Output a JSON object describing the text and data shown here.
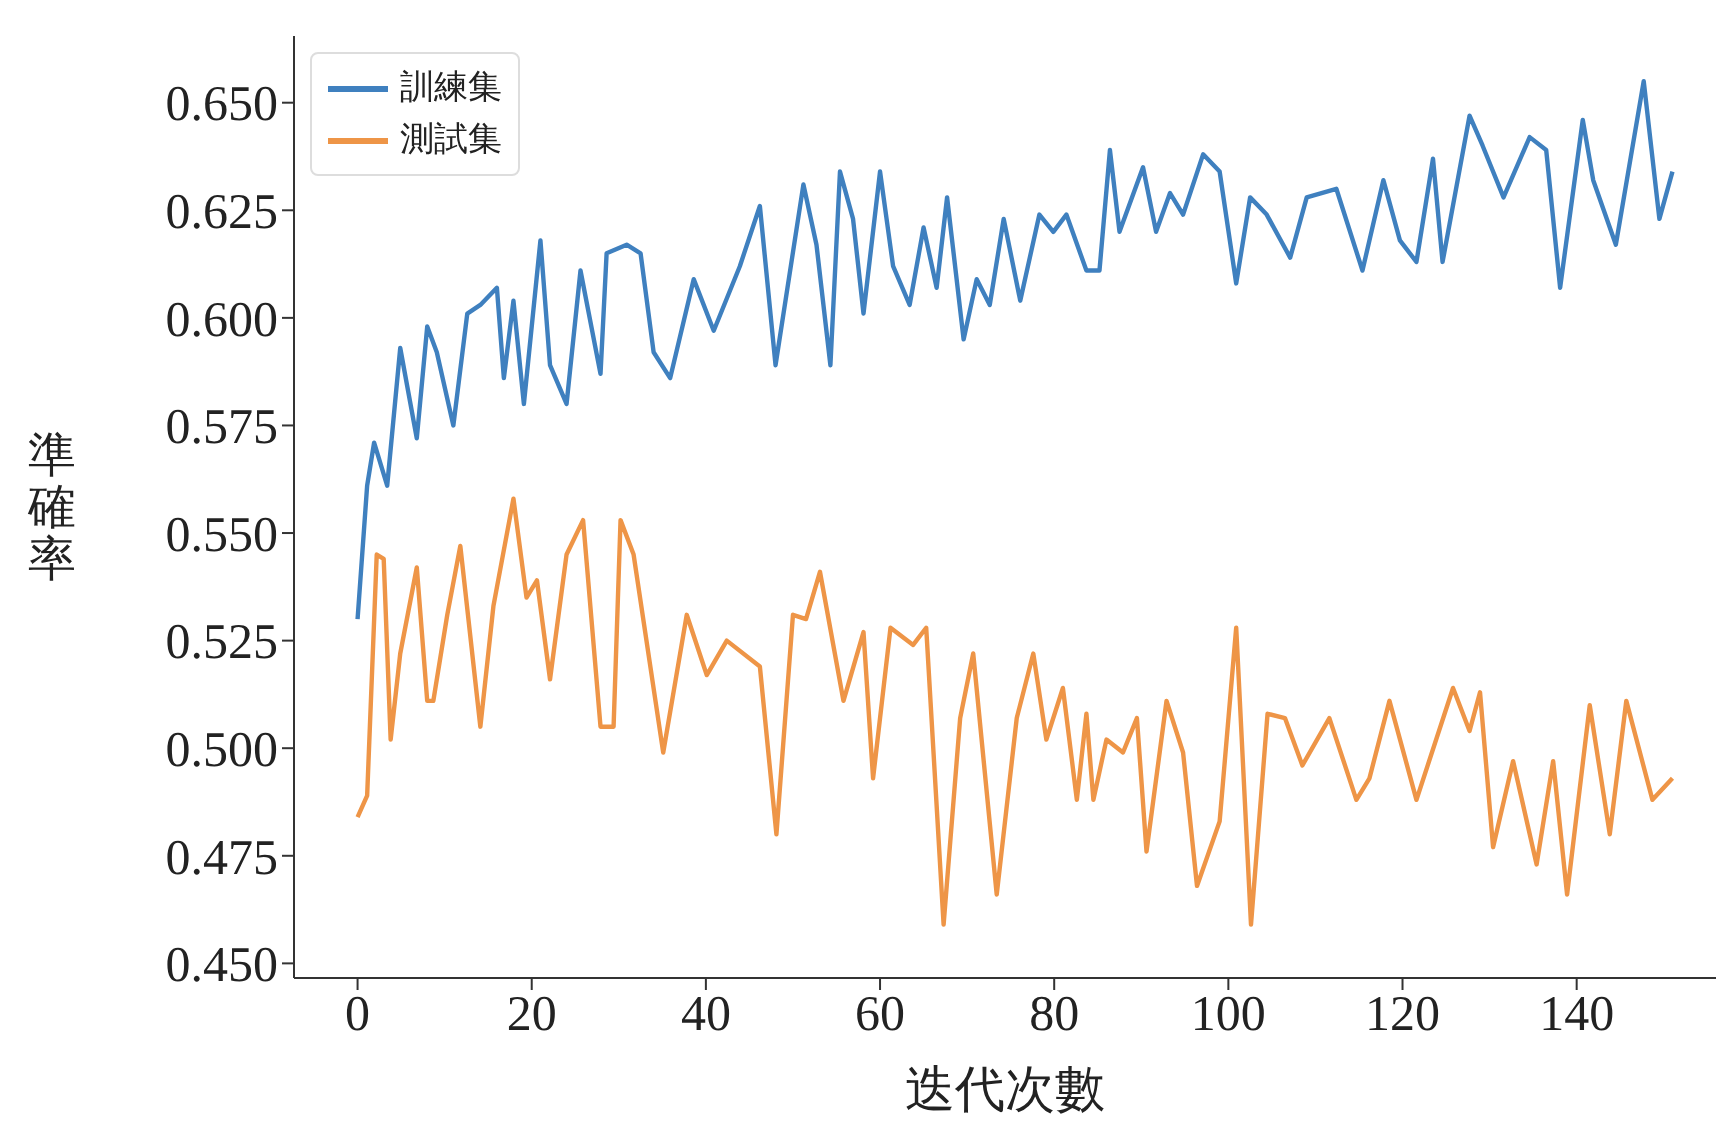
{
  "chart_data": {
    "type": "line",
    "xlabel": "迭代次數",
    "ylabel": "準確率",
    "xlim": [
      -7.3,
      156
    ],
    "xticks": [
      0,
      20,
      40,
      60,
      80,
      100,
      120,
      140
    ],
    "ylim": [
      0.4466,
      0.6655
    ],
    "yticks": [
      {
        "value": 0.45,
        "label": "0.450"
      },
      {
        "value": 0.475,
        "label": "0.475"
      },
      {
        "value": 0.5,
        "label": "0.500"
      },
      {
        "value": 0.525,
        "label": "0.525"
      },
      {
        "value": 0.55,
        "label": "0.550"
      },
      {
        "value": 0.575,
        "label": "0.575"
      },
      {
        "value": 0.6,
        "label": "0.600"
      },
      {
        "value": 0.625,
        "label": "0.625"
      },
      {
        "value": 0.65,
        "label": "0.650"
      }
    ],
    "grid": false,
    "legend": "top left",
    "line_style": "solid",
    "marker": "none",
    "series": [
      {
        "name": "訓練集",
        "color": "#3f80bf",
        "x": [
          0,
          1.1,
          1.9,
          3.4,
          4.9,
          6.8,
          8,
          9.1,
          11,
          12.6,
          14.1,
          16,
          16.8,
          17.9,
          19.1,
          21,
          22.1,
          24,
          25.6,
          27.9,
          28.6,
          30.9,
          32.5,
          34,
          35.9,
          38.6,
          40.9,
          43.9,
          46.2,
          48,
          51.2,
          52.7,
          54.3,
          55.4,
          56.9,
          58.1,
          60,
          61.5,
          63.4,
          65,
          66.5,
          67.7,
          69.6,
          71.1,
          72.6,
          74.2,
          76.1,
          78.3,
          79.9,
          81.4,
          83.7,
          85.2,
          86.4,
          87.5,
          90.2,
          91.7,
          93.3,
          94.8,
          97.1,
          99,
          100.9,
          102.5,
          104.4,
          107.1,
          109,
          112.4,
          115.4,
          117.8,
          119.7,
          121.6,
          123.5,
          124.6,
          127.7,
          129.2,
          131.6,
          134.6,
          136.5,
          138.1,
          140.7,
          141.9,
          144.5,
          147.7,
          149.5,
          151
        ],
        "values": [
          0.53,
          0.561,
          0.571,
          0.561,
          0.593,
          0.572,
          0.598,
          0.592,
          0.575,
          0.601,
          0.603,
          0.607,
          0.586,
          0.604,
          0.58,
          0.618,
          0.589,
          0.58,
          0.611,
          0.587,
          0.615,
          0.617,
          0.615,
          0.592,
          0.586,
          0.609,
          0.597,
          0.612,
          0.626,
          0.589,
          0.631,
          0.617,
          0.589,
          0.634,
          0.623,
          0.601,
          0.634,
          0.612,
          0.603,
          0.621,
          0.607,
          0.628,
          0.595,
          0.609,
          0.603,
          0.623,
          0.604,
          0.624,
          0.62,
          0.624,
          0.611,
          0.611,
          0.639,
          0.62,
          0.635,
          0.62,
          0.629,
          0.624,
          0.638,
          0.634,
          0.608,
          0.628,
          0.624,
          0.614,
          0.628,
          0.63,
          0.611,
          0.632,
          0.618,
          0.613,
          0.637,
          0.613,
          0.647,
          0.64,
          0.628,
          0.642,
          0.639,
          0.607,
          0.646,
          0.632,
          0.617,
          0.655,
          0.623,
          0.634
        ]
      },
      {
        "name": "測試集",
        "color": "#ee9547",
        "x": [
          0,
          1.1,
          2.2,
          3,
          3.8,
          4.9,
          6.8,
          8,
          8.7,
          10.3,
          11.8,
          14.1,
          15.6,
          17.9,
          19.4,
          20.6,
          22.1,
          24,
          25.9,
          27.9,
          29.4,
          30.2,
          31.7,
          35.1,
          37.8,
          40.1,
          42.4,
          46.2,
          48.1,
          50,
          51.5,
          53.1,
          55.8,
          58.1,
          59.2,
          61.2,
          63.8,
          65.3,
          67.3,
          69.2,
          70.7,
          73.4,
          75.7,
          77.6,
          79.1,
          81,
          82.6,
          83.7,
          84.5,
          86,
          87.9,
          89.5,
          90.6,
          92.9,
          94.8,
          96.4,
          99,
          100.9,
          102.6,
          104.5,
          106.5,
          108.5,
          111.6,
          114.7,
          116.2,
          118.5,
          121.6,
          125.8,
          127.7,
          128.9,
          130.4,
          132.7,
          135.4,
          137.3,
          138.9,
          141.5,
          143.8,
          145.7,
          148.7,
          151
        ],
        "values": [
          0.484,
          0.489,
          0.545,
          0.544,
          0.502,
          0.522,
          0.542,
          0.511,
          0.511,
          0.531,
          0.547,
          0.505,
          0.533,
          0.558,
          0.535,
          0.539,
          0.516,
          0.545,
          0.553,
          0.505,
          0.505,
          0.553,
          0.545,
          0.499,
          0.531,
          0.517,
          0.525,
          0.519,
          0.48,
          0.531,
          0.53,
          0.541,
          0.511,
          0.527,
          0.493,
          0.528,
          0.524,
          0.528,
          0.459,
          0.507,
          0.522,
          0.466,
          0.507,
          0.522,
          0.502,
          0.514,
          0.488,
          0.508,
          0.488,
          0.502,
          0.499,
          0.507,
          0.476,
          0.511,
          0.499,
          0.468,
          0.483,
          0.528,
          0.459,
          0.508,
          0.507,
          0.496,
          0.507,
          0.488,
          0.493,
          0.511,
          0.488,
          0.514,
          0.504,
          0.513,
          0.477,
          0.497,
          0.473,
          0.497,
          0.466,
          0.51,
          0.48,
          0.511,
          0.488,
          0.493
        ]
      }
    ]
  }
}
